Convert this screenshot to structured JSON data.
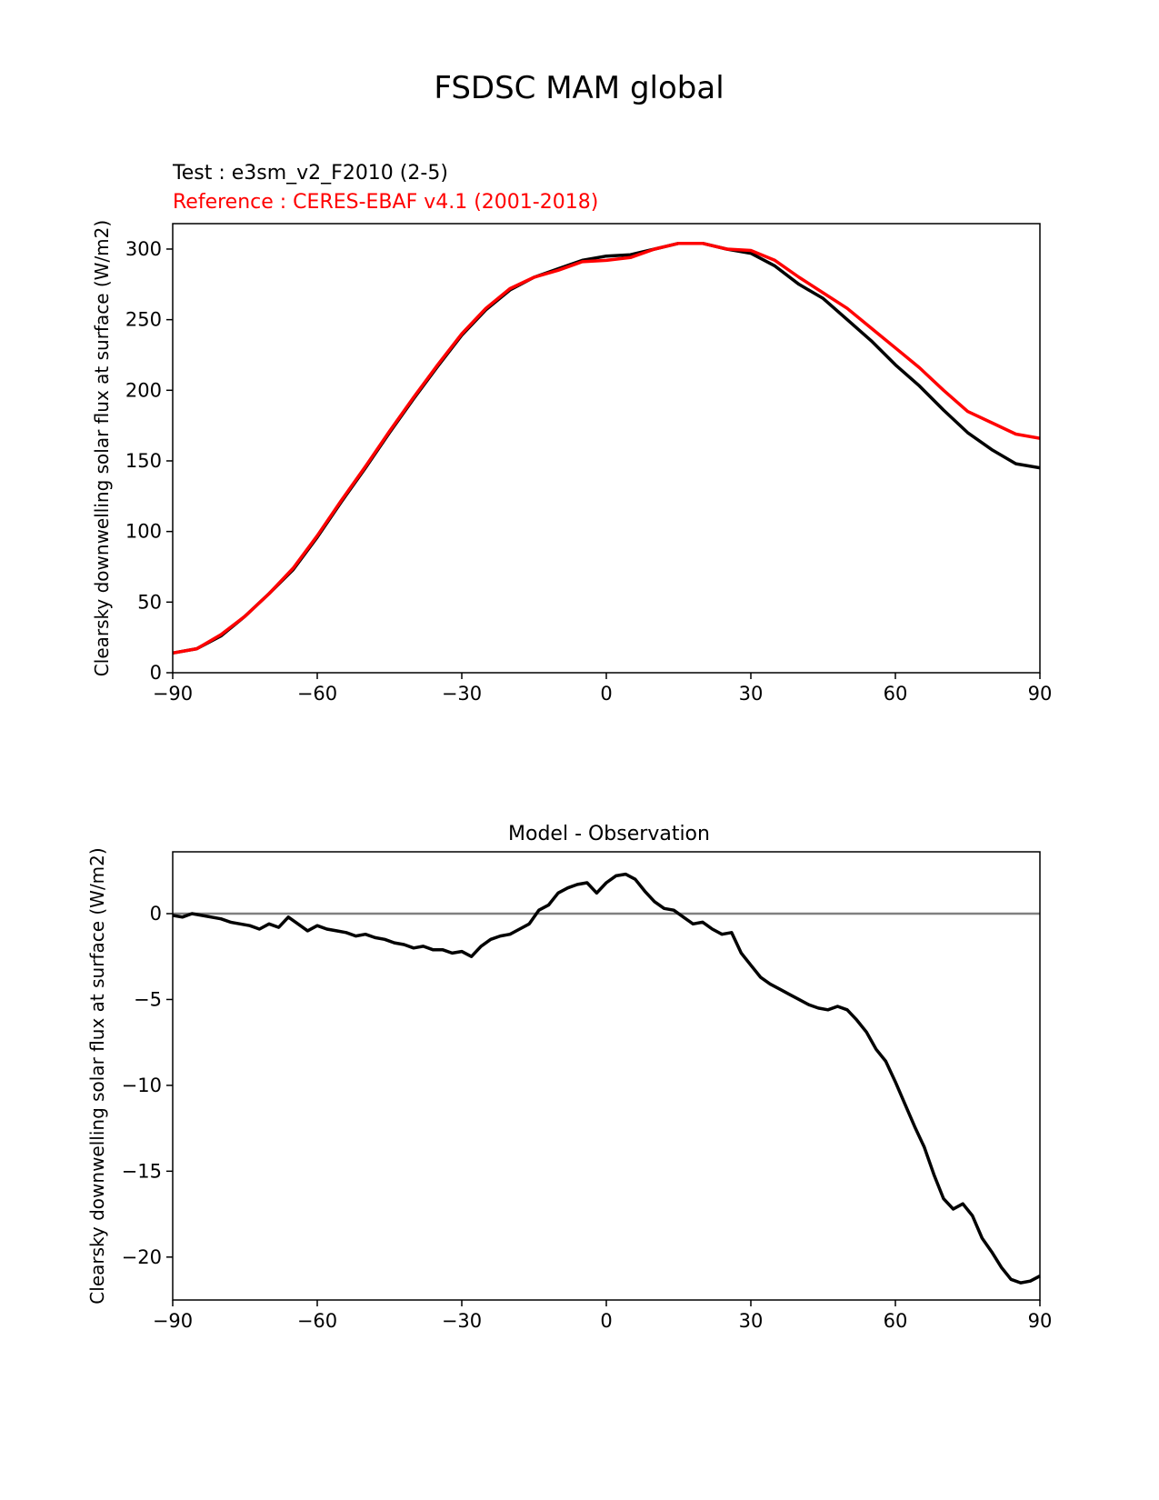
{
  "figure": {
    "suptitle": "FSDSC MAM global",
    "ylabel": "Clearsky downwelling solar flux at surface (W/m2)"
  },
  "chart_data": [
    {
      "type": "line",
      "test_label": "Test : e3sm_v2_F2010 (2-5)",
      "reference_label": "Reference : CERES-EBAF v4.1 (2001-2018)",
      "xlabel": "",
      "ylabel": "Clearsky downwelling solar flux at surface (W/m2)",
      "xlim": [
        -90,
        90
      ],
      "ylim": [
        0,
        318
      ],
      "xticks": [
        -90,
        -60,
        -30,
        0,
        30,
        60,
        90
      ],
      "yticks": [
        0,
        50,
        100,
        150,
        200,
        250,
        300
      ],
      "grid": false,
      "x": [
        -90,
        -85,
        -80,
        -75,
        -70,
        -65,
        -60,
        -55,
        -50,
        -45,
        -40,
        -35,
        -30,
        -25,
        -20,
        -15,
        -10,
        -5,
        0,
        5,
        10,
        15,
        20,
        25,
        30,
        35,
        40,
        45,
        50,
        55,
        60,
        65,
        70,
        75,
        80,
        85,
        90
      ],
      "series": [
        {
          "name": "test",
          "color": "#000000",
          "values": [
            14,
            17,
            26,
            40,
            56,
            73,
            96,
            121,
            145,
            170,
            194,
            217,
            239,
            257,
            271,
            280,
            286,
            292,
            295,
            296,
            300,
            304,
            304,
            300,
            297,
            288,
            275,
            265,
            250,
            235,
            218,
            203,
            186,
            170,
            158,
            148,
            145
          ]
        },
        {
          "name": "reference",
          "color": "#ff0000",
          "values": [
            14,
            17,
            27,
            40,
            56,
            74,
            97,
            122,
            146,
            171,
            195,
            218,
            240,
            258,
            272,
            280,
            285,
            291,
            292,
            294,
            300,
            304,
            304,
            300,
            299,
            292,
            280,
            269,
            258,
            244,
            230,
            216,
            200,
            185,
            177,
            169,
            166
          ]
        }
      ]
    },
    {
      "type": "line",
      "title": "Model - Observation",
      "xlabel": "",
      "ylabel": "Clearsky downwelling solar flux at surface (W/m2)",
      "xlim": [
        -90,
        90
      ],
      "ylim": [
        -22.5,
        3.6
      ],
      "xticks": [
        -90,
        -60,
        -30,
        0,
        30,
        60,
        90
      ],
      "yticks": [
        0,
        -5,
        -10,
        -15,
        -20
      ],
      "grid": false,
      "zero_line_color": "#808080",
      "x": [
        -90,
        -88,
        -86,
        -84,
        -82,
        -80,
        -78,
        -76,
        -74,
        -72,
        -70,
        -68,
        -66,
        -64,
        -62,
        -60,
        -58,
        -56,
        -54,
        -52,
        -50,
        -48,
        -46,
        -44,
        -42,
        -40,
        -38,
        -36,
        -34,
        -32,
        -30,
        -28,
        -26,
        -24,
        -22,
        -20,
        -18,
        -16,
        -14,
        -12,
        -10,
        -8,
        -6,
        -4,
        -2,
        0,
        2,
        4,
        6,
        8,
        10,
        12,
        14,
        16,
        18,
        20,
        22,
        24,
        26,
        28,
        30,
        32,
        34,
        36,
        38,
        40,
        42,
        44,
        46,
        48,
        50,
        52,
        54,
        56,
        58,
        60,
        62,
        64,
        66,
        68,
        70,
        72,
        74,
        76,
        78,
        80,
        82,
        84,
        86,
        88,
        90
      ],
      "series": [
        {
          "name": "difference",
          "color": "#000000",
          "values": [
            -0.1,
            -0.2,
            0.0,
            -0.1,
            -0.2,
            -0.3,
            -0.5,
            -0.6,
            -0.7,
            -0.9,
            -0.6,
            -0.8,
            -0.2,
            -0.6,
            -1.0,
            -0.7,
            -0.9,
            -1.0,
            -1.1,
            -1.3,
            -1.2,
            -1.4,
            -1.5,
            -1.7,
            -1.8,
            -2.0,
            -1.9,
            -2.1,
            -2.1,
            -2.3,
            -2.2,
            -2.5,
            -1.9,
            -1.5,
            -1.3,
            -1.2,
            -0.9,
            -0.6,
            0.2,
            0.5,
            1.2,
            1.5,
            1.7,
            1.8,
            1.2,
            1.8,
            2.2,
            2.3,
            2.0,
            1.3,
            0.7,
            0.3,
            0.2,
            -0.2,
            -0.6,
            -0.5,
            -0.9,
            -1.2,
            -1.1,
            -2.3,
            -3.0,
            -3.7,
            -4.1,
            -4.4,
            -4.7,
            -5.0,
            -5.3,
            -5.5,
            -5.6,
            -5.4,
            -5.6,
            -6.2,
            -6.9,
            -7.9,
            -8.6,
            -9.8,
            -11.1,
            -12.4,
            -13.6,
            -15.2,
            -16.6,
            -17.2,
            -16.9,
            -17.6,
            -18.9,
            -19.7,
            -20.6,
            -21.3,
            -21.5,
            -21.4,
            -21.1
          ]
        }
      ]
    }
  ]
}
